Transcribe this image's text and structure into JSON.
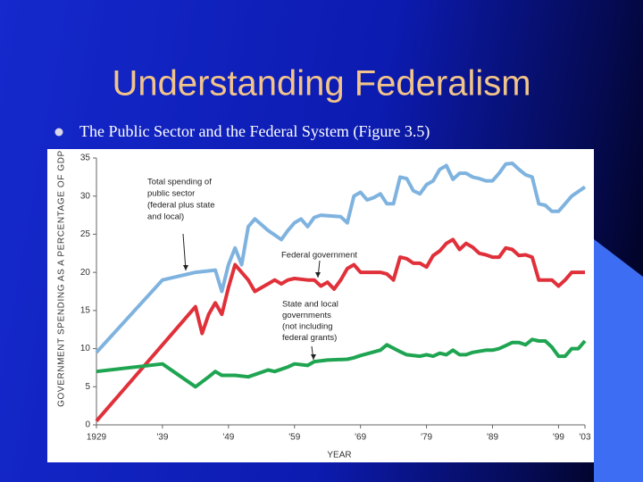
{
  "slide": {
    "title": "Understanding Federalism",
    "bullet": "The Public Sector and the Federal System (Figure 3.5)"
  },
  "chart_data": {
    "type": "line",
    "xlabel": "YEAR",
    "ylabel": "GOVERNMENT SPENDING AS A PERCENTAGE OF GDP",
    "xlim": [
      1929,
      2003
    ],
    "ylim": [
      0,
      35
    ],
    "xticks": [
      1929,
      {
        "value": 1939,
        "label": "'39"
      },
      {
        "value": 1949,
        "label": "'49"
      },
      {
        "value": 1959,
        "label": "'59"
      },
      {
        "value": 1969,
        "label": "'69"
      },
      {
        "value": 1979,
        "label": "'79"
      },
      {
        "value": 1989,
        "label": "'89"
      },
      {
        "value": 1999,
        "label": "'99"
      },
      {
        "value": 2003,
        "label": "'03"
      }
    ],
    "yticks": [
      0,
      5,
      10,
      15,
      20,
      25,
      30,
      35
    ],
    "annotations": [
      {
        "lines": [
          "Total spending of",
          "public sector",
          "(federal plus state",
          "and local)"
        ]
      },
      {
        "lines": [
          "Federal government"
        ]
      },
      {
        "lines": [
          "State and local",
          "governments",
          "(not including",
          "federal grants)"
        ]
      }
    ],
    "series": [
      {
        "color": "#7fb3df",
        "x": [
          1929,
          1939,
          1944,
          1947,
          1948,
          1949,
          1950,
          1951,
          1952,
          1953,
          1955,
          1957,
          1958,
          1959,
          1960,
          1961,
          1962,
          1963,
          1966,
          1967,
          1968,
          1969,
          1970,
          1971,
          1972,
          1973,
          1974,
          1975,
          1976,
          1977,
          1978,
          1979,
          1980,
          1981,
          1982,
          1983,
          1984,
          1985,
          1986,
          1987,
          1988,
          1989,
          1990,
          1991,
          1992,
          1993,
          1994,
          1995,
          1996,
          1997,
          1998,
          1999,
          2000,
          2001,
          2003
        ],
        "values": [
          9.5,
          19,
          20,
          20.3,
          17.5,
          21,
          23.2,
          21,
          26,
          27,
          25.5,
          24.3,
          25.5,
          26.5,
          27,
          26,
          27.2,
          27.5,
          27.3,
          26.5,
          30,
          30.5,
          29.5,
          29.8,
          30.3,
          29,
          29,
          32.5,
          32.3,
          30.7,
          30.3,
          31.5,
          32,
          33.5,
          34,
          32.2,
          33,
          33,
          32.5,
          32.3,
          32,
          32,
          33,
          34.2,
          34.3,
          33.5,
          32.8,
          32.5,
          29,
          28.8,
          28,
          28,
          29,
          30,
          31.2
        ]
      },
      {
        "color": "#e0303a",
        "x": [
          1929,
          1944,
          1945,
          1946,
          1947,
          1948,
          1949,
          1950,
          1952,
          1953,
          1955,
          1956,
          1957,
          1958,
          1959,
          1961,
          1962,
          1963,
          1964,
          1965,
          1966,
          1967,
          1968,
          1969,
          1972,
          1973,
          1974,
          1975,
          1976,
          1977,
          1978,
          1979,
          1980,
          1981,
          1982,
          1983,
          1984,
          1985,
          1986,
          1987,
          1988,
          1989,
          1990,
          1991,
          1992,
          1993,
          1994,
          1995,
          1996,
          1997,
          1998,
          1999,
          2000,
          2001,
          2003
        ],
        "values": [
          0.5,
          15.5,
          12,
          14.5,
          16,
          14.5,
          18,
          21,
          19,
          17.5,
          18.5,
          19,
          18.5,
          19,
          19.2,
          19,
          19,
          18.2,
          18.7,
          17.8,
          19,
          20.5,
          21,
          20,
          20,
          19.8,
          19,
          22,
          21.8,
          21.2,
          21.2,
          20.7,
          22.2,
          22.8,
          23.8,
          24.3,
          23,
          23.8,
          23.3,
          22.5,
          22.3,
          22,
          22,
          23.2,
          23,
          22.2,
          22.3,
          22,
          19,
          19,
          19,
          18.2,
          19,
          20,
          20
        ]
      },
      {
        "color": "#1fa552",
        "x": [
          1929,
          1939,
          1944,
          1946,
          1947,
          1948,
          1950,
          1952,
          1955,
          1956,
          1958,
          1959,
          1961,
          1962,
          1964,
          1967,
          1968,
          1969,
          1972,
          1973,
          1975,
          1976,
          1978,
          1979,
          1980,
          1981,
          1982,
          1983,
          1984,
          1985,
          1986,
          1988,
          1989,
          1990,
          1991,
          1992,
          1993,
          1994,
          1995,
          1996,
          1997,
          1998,
          1999,
          2000,
          2001,
          2002,
          2003
        ],
        "values": [
          7,
          8,
          5,
          6.3,
          7,
          6.5,
          6.5,
          6.3,
          7.2,
          7,
          7.6,
          8,
          7.8,
          8.3,
          8.5,
          8.6,
          8.8,
          9.1,
          9.8,
          10.5,
          9.6,
          9.2,
          9,
          9.2,
          9,
          9.4,
          9.2,
          9.8,
          9.2,
          9.2,
          9.5,
          9.8,
          9.8,
          10,
          10.4,
          10.8,
          10.8,
          10.5,
          11.2,
          11,
          11,
          10.2,
          9,
          9,
          10,
          10,
          11
        ]
      }
    ]
  }
}
